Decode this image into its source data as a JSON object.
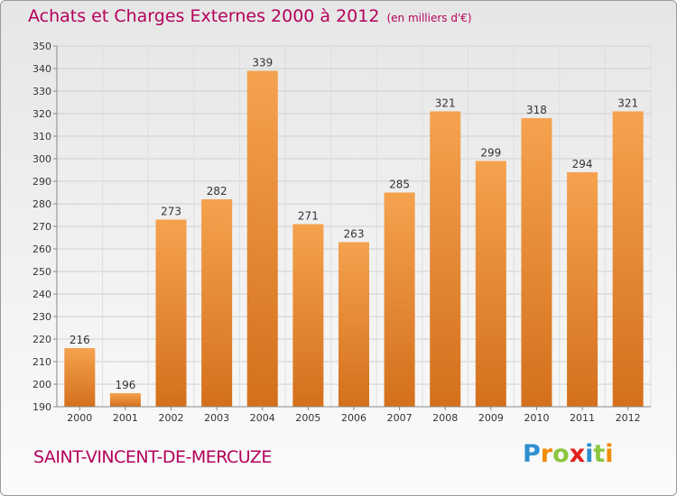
{
  "header": {
    "title": "Achats et Charges Externes 2000 à 2012",
    "unit": "(en milliers d'€)"
  },
  "footer": {
    "commune": "SAINT-VINCENT-DE-MERCUZE",
    "logo_letters": [
      "P",
      "r",
      "o",
      "x",
      "i",
      "t",
      "i"
    ],
    "logo_colors": [
      "#2e8fd0",
      "#f28c00",
      "#8cc63f",
      "#e2211c",
      "#2e8fd0",
      "#8cc63f",
      "#f28c00"
    ]
  },
  "chart_data": {
    "type": "bar",
    "title": "Achats et Charges Externes 2000 à 2012",
    "subtitle": "(en milliers d'€)",
    "xlabel": "",
    "ylabel": "",
    "categories": [
      "2000",
      "2001",
      "2002",
      "2003",
      "2004",
      "2005",
      "2006",
      "2007",
      "2008",
      "2009",
      "2010",
      "2011",
      "2012"
    ],
    "values": [
      216,
      196,
      273,
      282,
      339,
      271,
      263,
      285,
      321,
      299,
      318,
      294,
      321
    ],
    "ylim": [
      190,
      350
    ],
    "yticks": [
      190,
      200,
      210,
      220,
      230,
      240,
      250,
      260,
      270,
      280,
      290,
      300,
      310,
      320,
      330,
      340,
      350
    ],
    "grid": true,
    "bar_color": "#f0943a"
  }
}
